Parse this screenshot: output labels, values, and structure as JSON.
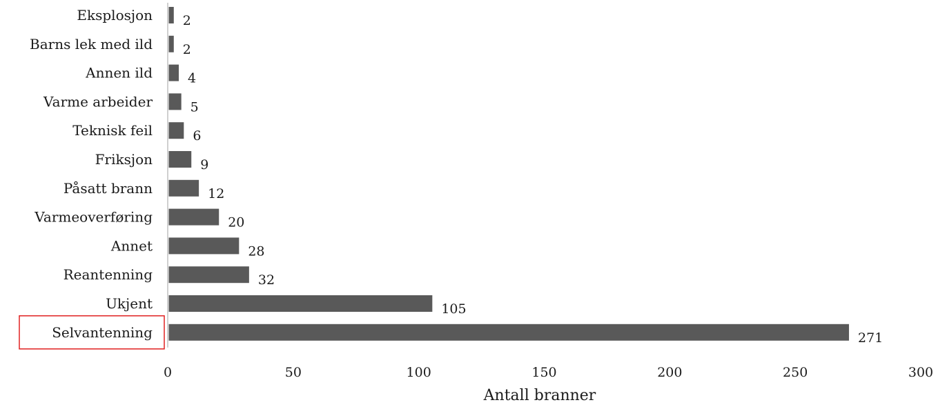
{
  "chart_data": {
    "type": "bar",
    "orientation": "horizontal",
    "categories": [
      "Eksplosjon",
      "Barns lek med ild",
      "Annen ild",
      "Varme arbeider",
      "Teknisk feil",
      "Friksjon",
      "Påsatt brann",
      "Varmeoverføring",
      "Annet",
      "Reantenning",
      "Ukjent",
      "Selvantenning"
    ],
    "values": [
      2,
      2,
      4,
      5,
      6,
      9,
      12,
      20,
      28,
      32,
      105,
      271
    ],
    "xlabel": "Antall branner",
    "ylabel": "",
    "title": "",
    "xlim": [
      0,
      300
    ],
    "xticks": [
      0,
      50,
      100,
      150,
      200,
      250,
      300
    ],
    "xtick_labels": [
      "0",
      "50",
      "100",
      "150",
      "200",
      "250",
      "300"
    ],
    "grid": false,
    "highlighted_category": "Selvantenning",
    "colors": {
      "bar": "#595959",
      "axis": "#bfbfbf",
      "highlight_box": "#e02020",
      "text": "#1a1a1a"
    }
  }
}
